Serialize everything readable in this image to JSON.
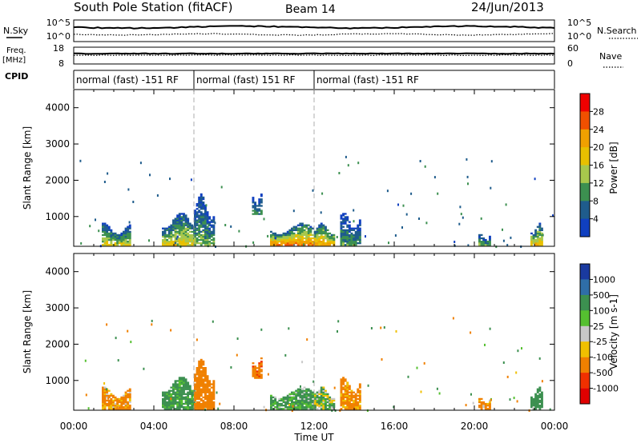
{
  "header": {
    "station": "South Pole Station (fitACF)",
    "beam": "Beam 14",
    "date": "24/Jun/2013"
  },
  "noise_panel": {
    "left_label": "N.Sky",
    "left_ticks": [
      "10^5",
      "10^0"
    ],
    "right_label": "N.Search",
    "right_ticks": [
      "10^5",
      "10^0"
    ]
  },
  "freq_panel": {
    "left_label_1": "Freq.",
    "left_label_2": "[MHz]",
    "left_ticks": [
      "18",
      "8"
    ],
    "right_label": "Nave",
    "right_ticks": [
      "60",
      "0"
    ]
  },
  "cpid": {
    "label": "CPID",
    "modes": [
      {
        "text": "normal (fast) -151 RF",
        "start_hour": 0
      },
      {
        "text": "normal (fast) 151 RF",
        "start_hour": 6
      },
      {
        "text": "normal (fast) -151 RF",
        "start_hour": 12
      }
    ]
  },
  "power_colorbar": {
    "label": "Power [dB]",
    "ticks": [
      "28",
      "24",
      "20",
      "16",
      "12",
      "8",
      "4"
    ],
    "colors": [
      "#f00000",
      "#f05000",
      "#f0a000",
      "#e8c000",
      "#a8c84c",
      "#3c9050",
      "#1f5c8c",
      "#1040c0"
    ]
  },
  "velocity_colorbar": {
    "label": "Velocity [m s-1]",
    "ticks": [
      "1000",
      "500",
      "100",
      "25",
      "-25",
      "-100",
      "-500",
      "-1000"
    ],
    "colors": [
      "#1a3aa0",
      "#2f6ea8",
      "#3c9050",
      "#55c030",
      "#c8c8c8",
      "#f0c000",
      "#f08000",
      "#f03000",
      "#e00000"
    ]
  },
  "chart_data": [
    {
      "type": "heatmap",
      "title": "Power",
      "ylabel": "Slant Range [km]",
      "xlabel": "Time UT",
      "xlim": [
        0,
        24
      ],
      "ylim": [
        180,
        4500
      ],
      "y_ticks": [
        1000,
        2000,
        3000,
        4000
      ],
      "x_ticks": [
        "00:00",
        "04:00",
        "08:00",
        "12:00",
        "16:00",
        "20:00",
        "00:00"
      ],
      "echo_regions": [
        {
          "t0": 1.4,
          "t1": 2.8,
          "r0": 200,
          "r1": 800,
          "power": 16
        },
        {
          "t0": 4.4,
          "t1": 6.0,
          "r0": 200,
          "r1": 1100,
          "power": 18
        },
        {
          "t0": 6.0,
          "t1": 7.0,
          "r0": 200,
          "r1": 1600,
          "power": 12
        },
        {
          "t0": 8.9,
          "t1": 9.4,
          "r0": 1050,
          "r1": 1600,
          "power": 10
        },
        {
          "t0": 9.8,
          "t1": 12.0,
          "r0": 200,
          "r1": 800,
          "power": 24
        },
        {
          "t0": 12.0,
          "t1": 13.0,
          "r0": 200,
          "r1": 800,
          "power": 22
        },
        {
          "t0": 13.3,
          "t1": 14.3,
          "r0": 200,
          "r1": 1100,
          "power": 10
        },
        {
          "t0": 20.2,
          "t1": 20.8,
          "r0": 200,
          "r1": 500,
          "power": 12
        },
        {
          "t0": 22.8,
          "t1": 23.4,
          "r0": 200,
          "r1": 800,
          "power": 20
        }
      ]
    },
    {
      "type": "heatmap",
      "title": "Velocity",
      "ylabel": "Slant Range [km]",
      "xlabel": "Time UT",
      "xlim": [
        0,
        24
      ],
      "ylim": [
        180,
        4500
      ],
      "y_ticks": [
        1000,
        2000,
        3000,
        4000
      ],
      "x_ticks": [
        "00:00",
        "04:00",
        "08:00",
        "12:00",
        "16:00",
        "20:00",
        "00:00"
      ],
      "echo_regions": [
        {
          "t0": 1.4,
          "t1": 2.8,
          "r0": 200,
          "r1": 800,
          "velocity": -150
        },
        {
          "t0": 4.4,
          "t1": 6.0,
          "r0": 200,
          "r1": 1100,
          "velocity": 200
        },
        {
          "t0": 6.0,
          "t1": 7.0,
          "r0": 200,
          "r1": 1600,
          "velocity": -300
        },
        {
          "t0": 8.9,
          "t1": 9.4,
          "r0": 1050,
          "r1": 1600,
          "velocity": -400
        },
        {
          "t0": 9.8,
          "t1": 12.0,
          "r0": 200,
          "r1": 800,
          "velocity": 150
        },
        {
          "t0": 12.0,
          "t1": 13.0,
          "r0": 200,
          "r1": 800,
          "velocity": 80
        },
        {
          "t0": 13.3,
          "t1": 14.3,
          "r0": 200,
          "r1": 1100,
          "velocity": -200
        },
        {
          "t0": 20.2,
          "t1": 20.8,
          "r0": 200,
          "r1": 500,
          "velocity": -150
        },
        {
          "t0": 22.8,
          "t1": 23.4,
          "r0": 200,
          "r1": 800,
          "velocity": 300
        }
      ]
    }
  ]
}
